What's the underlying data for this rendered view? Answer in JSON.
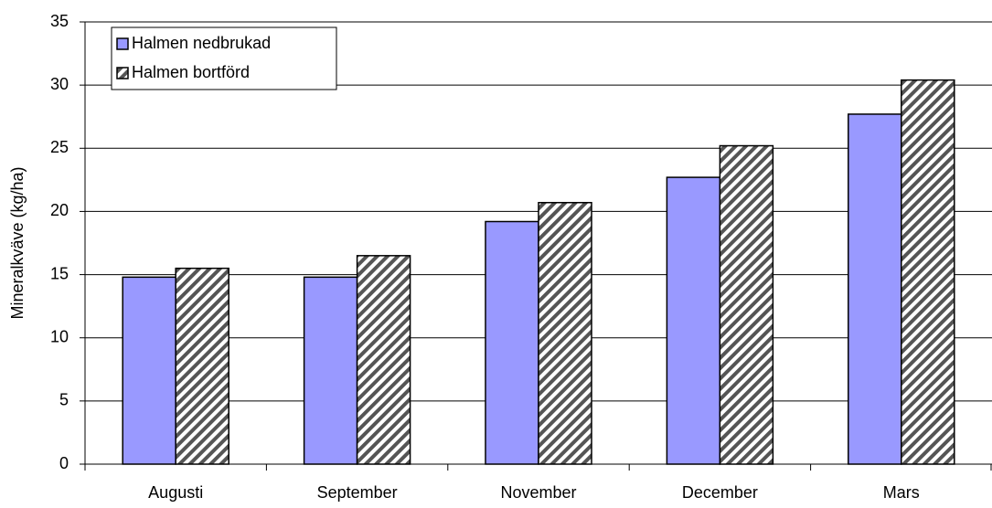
{
  "chart_data": {
    "type": "bar",
    "y_label": "Mineralkväve (kg/ha)",
    "categories": [
      "Augusti",
      "September",
      "November",
      "December",
      "Mars"
    ],
    "series": [
      {
        "name": "Halmen nedbrukad",
        "color": "#9999ff",
        "values": [
          14.8,
          14.8,
          19.2,
          22.7,
          27.7
        ]
      },
      {
        "name": "Halmen bortförd",
        "color": "#555555",
        "pattern": "diagonal",
        "values": [
          15.5,
          16.5,
          20.7,
          25.2,
          30.4
        ]
      }
    ],
    "ylim": [
      0,
      35
    ],
    "yticks": [
      0,
      5,
      10,
      15,
      20,
      25,
      30,
      35
    ],
    "grid": true,
    "legend": "upper left"
  }
}
